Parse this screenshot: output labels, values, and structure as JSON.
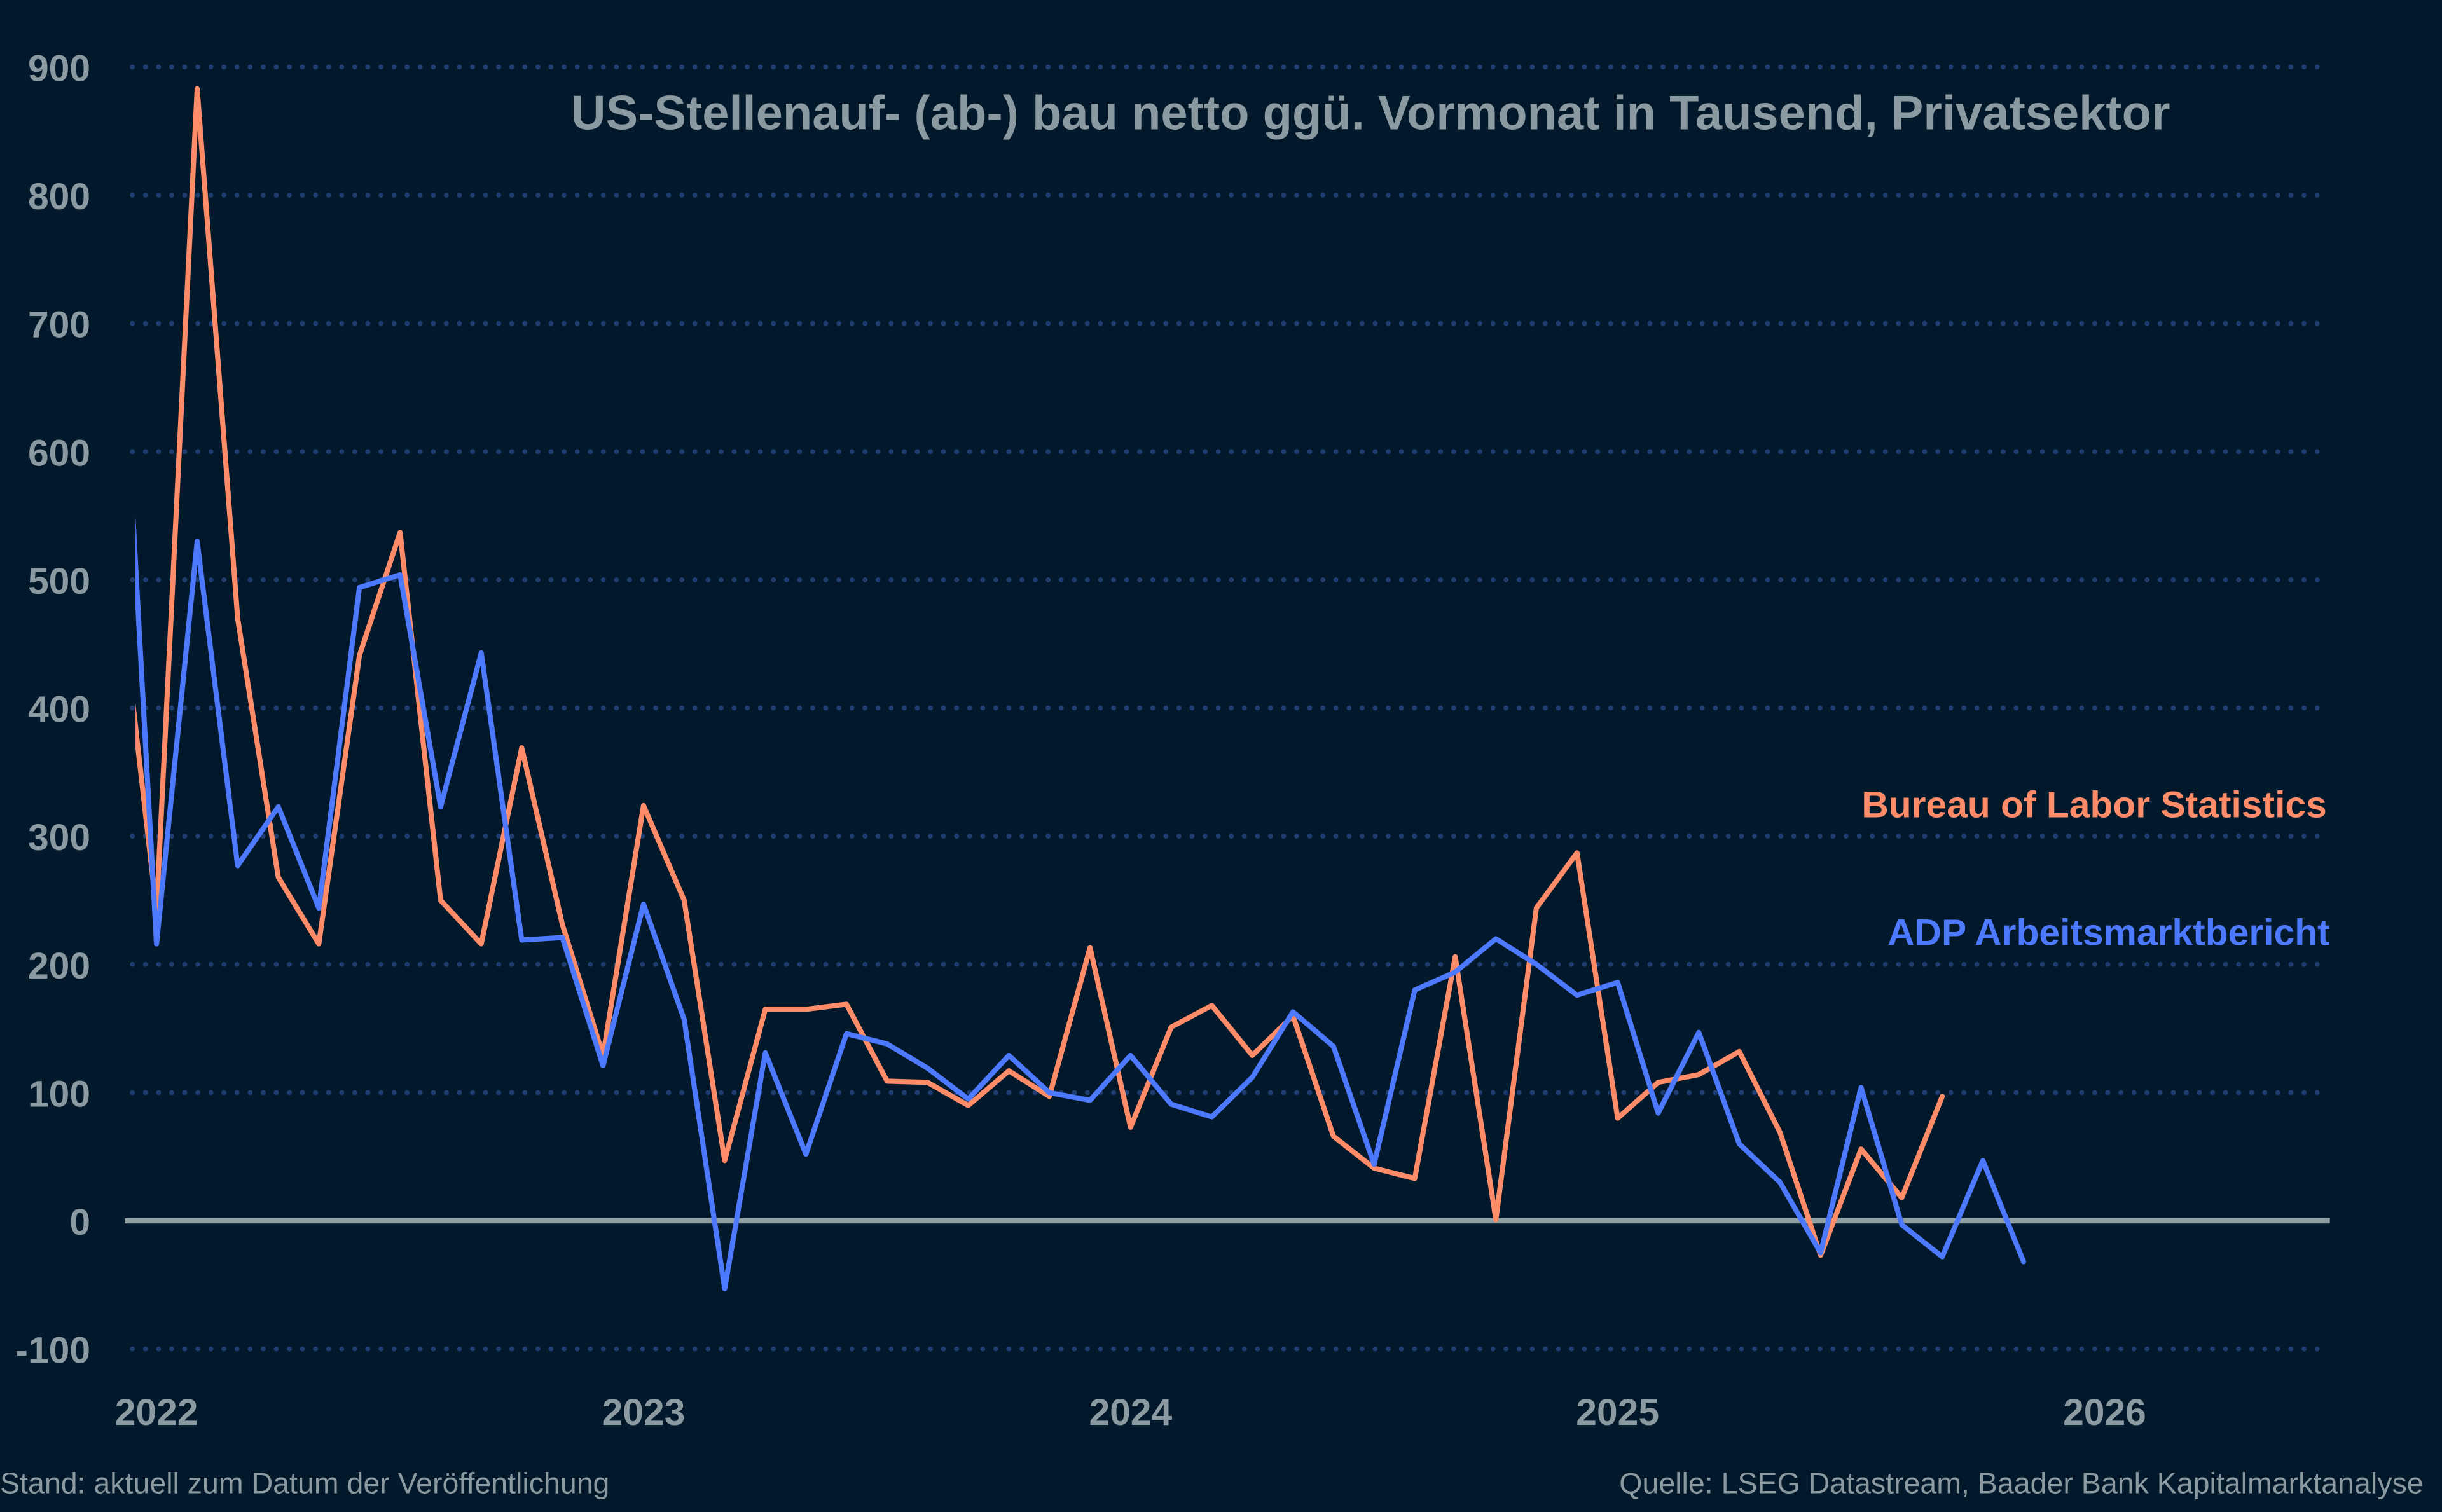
{
  "chart_data": {
    "type": "line",
    "title": "US-Stellenauf- (ab-) bau netto ggü. Vormonat in Tausend, Privatsektor",
    "xlabel": "",
    "ylabel": "",
    "ylim": [
      -100,
      900
    ],
    "yticks": [
      900,
      800,
      700,
      600,
      500,
      400,
      300,
      200,
      100,
      0,
      -100
    ],
    "xticks": [
      "2022",
      "2023",
      "2024",
      "2025",
      "2026"
    ],
    "xlim": [
      "2021-12-16",
      "2026-06-15"
    ],
    "grid": "horizontal dotted",
    "legend": "right, inline labels",
    "x": [
      "2021-12",
      "2022-01",
      "2022-02",
      "2022-03",
      "2022-04",
      "2022-05",
      "2022-06",
      "2022-07",
      "2022-08",
      "2022-09",
      "2022-10",
      "2022-11",
      "2022-12",
      "2023-01",
      "2023-02",
      "2023-03",
      "2023-04",
      "2023-05",
      "2023-06",
      "2023-07",
      "2023-08",
      "2023-09",
      "2023-10",
      "2023-11",
      "2023-12",
      "2024-01",
      "2024-02",
      "2024-03",
      "2024-04",
      "2024-05",
      "2024-06",
      "2024-07",
      "2024-08",
      "2024-09",
      "2024-10",
      "2024-11",
      "2024-12",
      "2025-01",
      "2025-02",
      "2025-03",
      "2025-04",
      "2025-05",
      "2025-06",
      "2025-07",
      "2025-08",
      "2025-09",
      "2025-10",
      "2025-11"
    ],
    "series": [
      {
        "name": "Bureau of Labor Statistics",
        "color": "#ff8c69",
        "values": [
          520,
          242,
          883,
          470,
          268,
          216,
          441,
          537,
          250,
          216,
          369,
          231,
          129,
          324,
          250,
          47,
          165,
          165,
          169,
          109,
          108,
          90,
          117,
          97,
          213,
          73,
          151,
          168,
          129,
          160,
          66,
          41,
          33,
          206,
          1,
          244,
          287,
          80,
          108,
          114,
          132,
          69,
          -27,
          56,
          18,
          97,
          null,
          null
        ]
      },
      {
        "name": "ADP Arbeitsmarktbericht",
        "color": "#4d79ff",
        "values": [
          790,
          216,
          530,
          277,
          323,
          244,
          494,
          504,
          323,
          443,
          219,
          221,
          121,
          247,
          157,
          -53,
          131,
          52,
          146,
          138,
          119,
          95,
          129,
          100,
          94,
          129,
          91,
          81,
          112,
          163,
          136,
          44,
          180,
          194,
          220,
          200,
          176,
          186,
          84,
          147,
          60,
          30,
          -25,
          104,
          -3,
          -28,
          47,
          -32
        ]
      }
    ]
  },
  "footer": {
    "left": "Stand: aktuell zum Datum der Veröffentlichung",
    "right": "Quelle: LSEG Datastream, Baader Bank Kapitalmarktanalyse"
  },
  "colors": {
    "background": "#02192b",
    "grid": "#1f3d70",
    "zero_line": "#8f9ea3",
    "text": "#8b99a0"
  }
}
